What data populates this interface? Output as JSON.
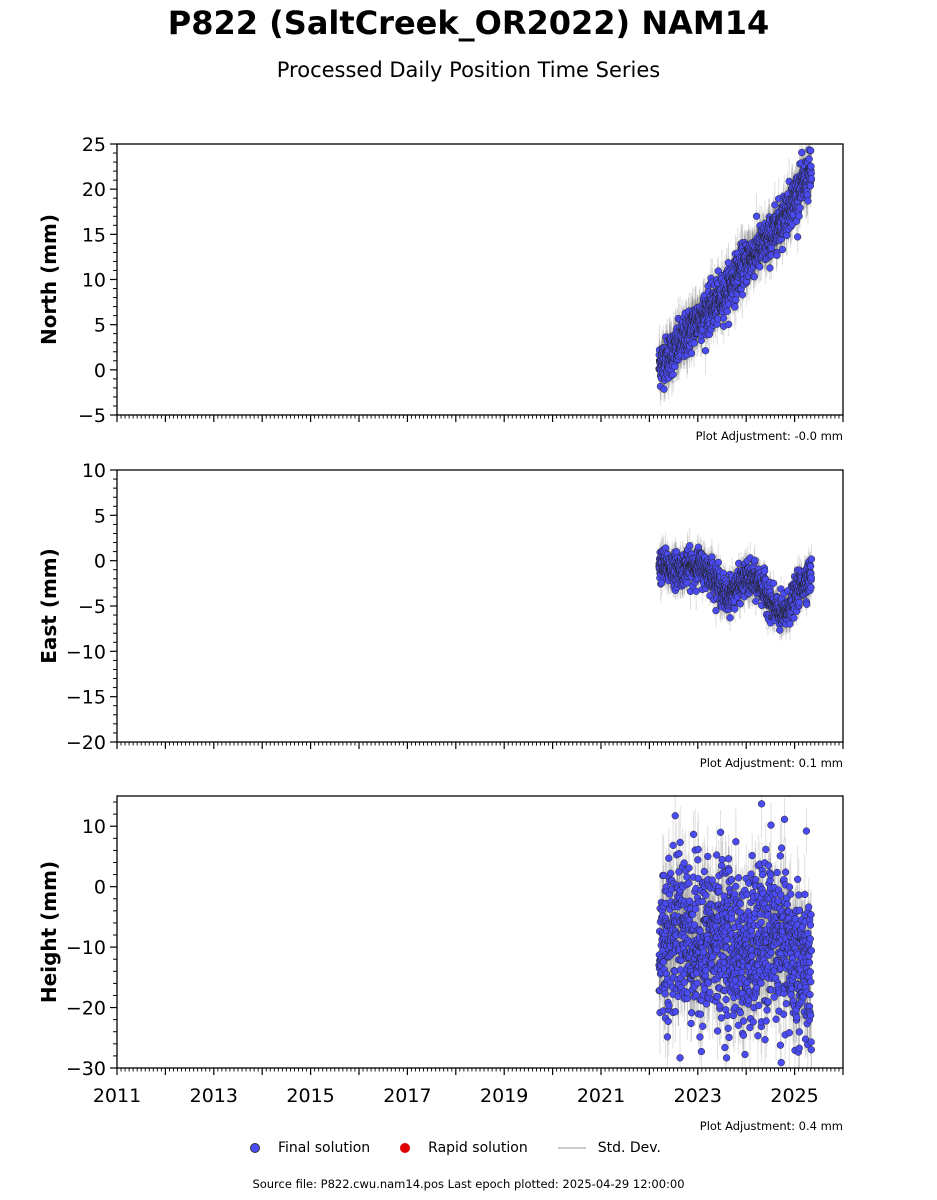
{
  "title": "P822 (SaltCreek_OR2022) NAM14",
  "subtitle": "Processed Daily Position Time Series",
  "legend": {
    "final_label": "Final solution",
    "rapid_label": "Rapid solution",
    "std_label": "Std. Dev.",
    "final_color": "#4b4bf5",
    "rapid_color": "#e00000",
    "std_color": "#cccccc"
  },
  "source_text": "Source file: P822.cwu.nam14.pos  Last epoch plotted: 2025-04-29 12:00:00",
  "chart_data": [
    {
      "type": "scatter",
      "ylabel": "North (mm)",
      "xlim": [
        2011,
        2026
      ],
      "ylim": [
        -5,
        25
      ],
      "yticks": [
        -5,
        0,
        5,
        10,
        15,
        20,
        25
      ],
      "adjustment": "Plot Adjustment: -0.0 mm",
      "series": [
        {
          "trend": {
            "x": [
              2022.2,
              2022.5,
              2023.0,
              2023.5,
              2024.0,
              2024.5,
              2025.0,
              2025.35
            ],
            "y": [
              0.5,
              2.0,
              5.5,
              8.0,
              12.0,
              14.5,
              19.0,
              22.0
            ]
          },
          "scatter": 1.2,
          "std": 2.0
        }
      ]
    },
    {
      "type": "scatter",
      "ylabel": "East (mm)",
      "xlim": [
        2011,
        2026
      ],
      "ylim": [
        -20,
        10
      ],
      "yticks": [
        -20,
        -15,
        -10,
        -5,
        0,
        5,
        10
      ],
      "adjustment": "Plot Adjustment: 0.1 mm",
      "series": [
        {
          "trend": {
            "x": [
              2022.2,
              2022.6,
              2023.0,
              2023.3,
              2023.6,
              2024.0,
              2024.3,
              2024.6,
              2024.8,
              2025.1,
              2025.35
            ],
            "y": [
              -0.5,
              -1.0,
              -0.5,
              -1.5,
              -4.0,
              -2.0,
              -2.5,
              -5.5,
              -6.0,
              -3.0,
              -1.5
            ]
          },
          "scatter": 0.9,
          "std": 1.5
        }
      ]
    },
    {
      "type": "scatter",
      "ylabel": "Height (mm)",
      "xlim": [
        2011,
        2026
      ],
      "ylim": [
        -30,
        15
      ],
      "yticks": [
        -30,
        -20,
        -10,
        0,
        10
      ],
      "xticks": [
        2011,
        2013,
        2015,
        2017,
        2019,
        2021,
        2023,
        2025
      ],
      "adjustment": "Plot Adjustment: 0.4 mm",
      "series": [
        {
          "trend": {
            "x": [
              2022.2,
              2022.6,
              2023.0,
              2023.5,
              2024.0,
              2024.5,
              2025.0,
              2025.35
            ],
            "y": [
              -10,
              -6,
              -10,
              -8,
              -12,
              -8,
              -12,
              -15
            ]
          },
          "scatter": 6.5,
          "std": 5.0
        }
      ]
    }
  ]
}
